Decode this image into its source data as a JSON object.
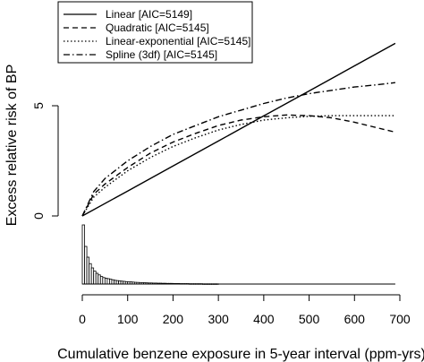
{
  "chart_data": {
    "type": "line",
    "xlabel": "Cumulative benzene exposure in 5-year interval (ppm-yrs)",
    "ylabel": "Excess relative risk of BP",
    "xlim": [
      0,
      700
    ],
    "ylim": [
      0,
      10
    ],
    "x_ticks": [
      0,
      100,
      200,
      300,
      400,
      500,
      600,
      700
    ],
    "y_ticks": [
      0,
      5
    ],
    "legend_position": "top-left",
    "series": [
      {
        "name": "Linear [AIC=5149]",
        "dash": "solid",
        "x": [
          0,
          100,
          200,
          300,
          400,
          500,
          600,
          690
        ],
        "y": [
          0,
          1.13,
          2.27,
          3.4,
          4.54,
          5.67,
          6.81,
          7.83
        ]
      },
      {
        "name": "Quadratic [AIC=5145]",
        "dash": "dashed",
        "x": [
          0,
          25,
          50,
          100,
          150,
          200,
          250,
          300,
          350,
          400,
          450,
          500,
          550,
          600,
          650,
          690
        ],
        "y": [
          0,
          0.98,
          1.45,
          2.2,
          2.85,
          3.35,
          3.75,
          4.1,
          4.35,
          4.5,
          4.58,
          4.55,
          4.45,
          4.25,
          4.0,
          3.8
        ]
      },
      {
        "name": "Linear-exponential [AIC=5145]",
        "dash": "dotted",
        "x": [
          0,
          25,
          50,
          100,
          150,
          200,
          250,
          300,
          350,
          400,
          450,
          500,
          550,
          600,
          650,
          690
        ],
        "y": [
          0,
          0.85,
          1.3,
          2.05,
          2.65,
          3.15,
          3.55,
          3.9,
          4.15,
          4.35,
          4.45,
          4.52,
          4.55,
          4.55,
          4.55,
          4.55
        ]
      },
      {
        "name": "Spline (3df) [AIC=5145]",
        "dash": "dashdot",
        "x": [
          0,
          25,
          50,
          100,
          150,
          200,
          250,
          300,
          350,
          400,
          450,
          500,
          550,
          600,
          650,
          690
        ],
        "y": [
          0,
          1.1,
          1.7,
          2.5,
          3.15,
          3.7,
          4.1,
          4.5,
          4.8,
          5.1,
          5.35,
          5.55,
          5.7,
          5.85,
          5.95,
          6.05
        ]
      }
    ],
    "histogram": {
      "bin_width": 5,
      "rel_height": [
        0.55,
        0.35,
        0.25,
        0.19,
        0.15,
        0.12,
        0.1,
        0.085,
        0.07,
        0.06,
        0.055,
        0.05,
        0.045,
        0.04,
        0.035,
        0.032,
        0.03,
        0.027,
        0.025,
        0.022,
        0.02,
        0.02,
        0.018,
        0.016,
        0.015,
        0.014,
        0.013,
        0.012,
        0.011,
        0.01,
        0.01,
        0.009,
        0.009,
        0.008,
        0.008,
        0.007,
        0.007,
        0.006,
        0.006,
        0.006,
        0.005,
        0.005,
        0.005,
        0.004,
        0.004,
        0.004,
        0.004,
        0.003,
        0.003,
        0.003,
        0.003,
        0.003,
        0.003,
        0.002,
        0.002,
        0.002,
        0.002,
        0.002,
        0.002,
        0.002
      ]
    }
  }
}
